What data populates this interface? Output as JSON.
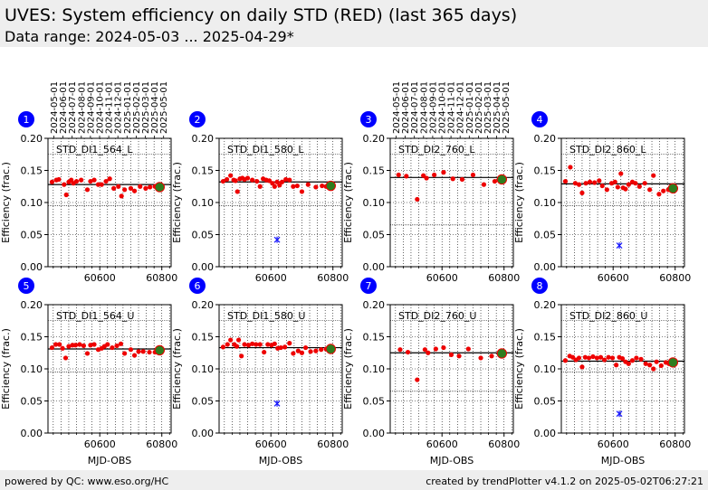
{
  "header": {
    "title": "UVES: System efficiency on daily STD (RED) (last 365 days)",
    "subtitle": "Data range: 2024-05-03 ... 2025-04-29*"
  },
  "footer": {
    "left": "powered by QC: www.eso.org/HC",
    "right": "created by trendPlotter v4.1.2 on 2025-05-02T06:27:21"
  },
  "colors": {
    "point": "#ee0000",
    "latest": "#2e7d1e",
    "outlier": "#1a1aff",
    "badge": "#0000ff",
    "grid": "#000000"
  },
  "date_ticks": [
    "2024-05-01",
    "2024-06-01",
    "2024-07-01",
    "2024-08-01",
    "2024-09-01",
    "2024-10-01",
    "2024-11-01",
    "2024-12-01",
    "2025-01-01",
    "2025-02-01",
    "2025-03-01",
    "2025-04-01",
    "2025-05-01"
  ],
  "chart_data": [
    {
      "type": "scatter",
      "badge": "1",
      "label": "STD_DI1_564_L",
      "xlabel": "",
      "ylabel": "Efficiency (frac.)",
      "xlim": [
        60433,
        60830
      ],
      "ylim": [
        0,
        0.2
      ],
      "xticks": [
        60600,
        60800
      ],
      "yticks": [
        "0.00",
        "0.05",
        "0.10",
        "0.15",
        "0.20"
      ],
      "show_dates": true,
      "ref": 0.128,
      "lower": 0.095,
      "upper": 0.175,
      "x": [
        60446,
        60460,
        60468,
        60485,
        60492,
        60500,
        60508,
        60515,
        60525,
        60540,
        60560,
        60570,
        60582,
        60595,
        60606,
        60620,
        60632,
        60645,
        60660,
        60670,
        60680,
        60700,
        60712,
        60730,
        60748,
        60762,
        60778
      ],
      "y": [
        0.132,
        0.135,
        0.136,
        0.128,
        0.112,
        0.132,
        0.135,
        0.13,
        0.133,
        0.135,
        0.12,
        0.133,
        0.135,
        0.128,
        0.128,
        0.133,
        0.137,
        0.122,
        0.125,
        0.11,
        0.12,
        0.122,
        0.118,
        0.125,
        0.122,
        0.124,
        0.125
      ],
      "latest": [
        60793,
        0.124
      ],
      "outliers": []
    },
    {
      "type": "scatter",
      "badge": "2",
      "label": "STD_DI1_580_L",
      "xlabel": "",
      "ylabel": "Efficiency (frac.)",
      "xlim": [
        60433,
        60830
      ],
      "ylim": [
        0,
        0.2
      ],
      "xticks": [
        60600,
        60800
      ],
      "yticks": [
        "0.00",
        "0.05",
        "0.10",
        "0.15",
        "0.20"
      ],
      "show_dates": false,
      "ref": 0.132,
      "lower": 0.095,
      "upper": 0.175,
      "x": [
        60446,
        60458,
        60470,
        60480,
        60486,
        60492,
        60500,
        60508,
        60515,
        60525,
        60540,
        60555,
        60565,
        60575,
        60585,
        60595,
        60605,
        60612,
        60620,
        60628,
        60636,
        60648,
        60660,
        60672,
        60685,
        60700,
        60720,
        60745,
        60765,
        60778
      ],
      "y": [
        0.133,
        0.136,
        0.142,
        0.135,
        0.134,
        0.117,
        0.137,
        0.138,
        0.136,
        0.138,
        0.135,
        0.133,
        0.125,
        0.137,
        0.135,
        0.134,
        0.13,
        0.125,
        0.132,
        0.127,
        0.132,
        0.136,
        0.135,
        0.125,
        0.126,
        0.117,
        0.128,
        0.124,
        0.126,
        0.125
      ],
      "latest": [
        60793,
        0.126
      ],
      "outliers": [
        [
          60620,
          0.042
        ]
      ]
    },
    {
      "type": "scatter",
      "badge": "3",
      "label": "STD_DI2_760_L",
      "xlabel": "",
      "ylabel": "Efficiency (frac.)",
      "xlim": [
        60433,
        60830
      ],
      "ylim": [
        0,
        0.2
      ],
      "xticks": [
        60600,
        60800
      ],
      "yticks": [
        "0.00",
        "0.05",
        "0.10",
        "0.15",
        "0.20"
      ],
      "show_dates": true,
      "ref": 0.139,
      "lower": 0.065,
      "upper": 0.175,
      "x": [
        60460,
        60485,
        60520,
        60540,
        60550,
        60575,
        60605,
        60635,
        60665,
        60700,
        60735,
        60770
      ],
      "y": [
        0.143,
        0.141,
        0.105,
        0.142,
        0.138,
        0.143,
        0.147,
        0.137,
        0.136,
        0.143,
        0.128,
        0.133
      ],
      "latest": [
        60793,
        0.136
      ],
      "outliers": []
    },
    {
      "type": "scatter",
      "badge": "4",
      "label": "STD_DI2_860_L",
      "xlabel": "",
      "ylabel": "Efficiency (frac.)",
      "xlim": [
        60433,
        60830
      ],
      "ylim": [
        0,
        0.2
      ],
      "xticks": [
        60600,
        60800
      ],
      "yticks": [
        "0.00",
        "0.05",
        "0.10",
        "0.15",
        "0.20"
      ],
      "show_dates": false,
      "ref": 0.129,
      "lower": 0.095,
      "upper": 0.175,
      "x": [
        60446,
        60462,
        60478,
        60490,
        60500,
        60512,
        60525,
        60540,
        60555,
        60565,
        60580,
        60595,
        60606,
        60615,
        60625,
        60632,
        60640,
        60650,
        60662,
        60672,
        60685,
        60702,
        60718,
        60730,
        60748,
        60762,
        60778
      ],
      "y": [
        0.133,
        0.155,
        0.13,
        0.128,
        0.115,
        0.13,
        0.132,
        0.131,
        0.134,
        0.126,
        0.12,
        0.13,
        0.132,
        0.124,
        0.145,
        0.123,
        0.121,
        0.128,
        0.132,
        0.13,
        0.125,
        0.13,
        0.12,
        0.142,
        0.113,
        0.118,
        0.12
      ],
      "latest": [
        60793,
        0.122
      ],
      "outliers": [
        [
          60620,
          0.033
        ]
      ]
    },
    {
      "type": "scatter",
      "badge": "5",
      "label": "STD_DI1_564_U",
      "xlabel": "MJD-OBS",
      "ylabel": "Efficiency (frac.)",
      "xlim": [
        60433,
        60830
      ],
      "ylim": [
        0,
        0.2
      ],
      "xticks": [
        60600,
        60800
      ],
      "yticks": [
        "0.00",
        "0.05",
        "0.10",
        "0.15",
        "0.20"
      ],
      "show_dates": false,
      "ref": 0.131,
      "lower": 0.095,
      "upper": 0.175,
      "x": [
        60446,
        60458,
        60470,
        60480,
        60490,
        60500,
        60512,
        60522,
        60535,
        60548,
        60560,
        60570,
        60582,
        60595,
        60606,
        60615,
        60625,
        60640,
        60655,
        60668,
        60680,
        60700,
        60712,
        60725,
        60740,
        60760,
        60778
      ],
      "y": [
        0.133,
        0.138,
        0.138,
        0.132,
        0.117,
        0.135,
        0.137,
        0.137,
        0.138,
        0.136,
        0.124,
        0.137,
        0.138,
        0.13,
        0.132,
        0.135,
        0.138,
        0.133,
        0.136,
        0.139,
        0.124,
        0.13,
        0.121,
        0.127,
        0.127,
        0.126,
        0.126
      ],
      "latest": [
        60793,
        0.129
      ],
      "outliers": []
    },
    {
      "type": "scatter",
      "badge": "6",
      "label": "STD_DI1_580_U",
      "xlabel": "MJD-OBS",
      "ylabel": "Efficiency (frac.)",
      "xlim": [
        60433,
        60830
      ],
      "ylim": [
        0,
        0.2
      ],
      "xticks": [
        60600,
        60800
      ],
      "yticks": [
        "0.00",
        "0.05",
        "0.10",
        "0.15",
        "0.20"
      ],
      "show_dates": false,
      "ref": 0.133,
      "lower": 0.095,
      "upper": 0.175,
      "x": [
        60446,
        60460,
        60470,
        60482,
        60490,
        60496,
        60505,
        60515,
        60528,
        60540,
        60552,
        60565,
        60578,
        60590,
        60602,
        60612,
        60622,
        60632,
        60645,
        60660,
        60672,
        60688,
        60700,
        60712,
        60728,
        60745,
        60762,
        60778
      ],
      "y": [
        0.134,
        0.138,
        0.145,
        0.138,
        0.135,
        0.145,
        0.12,
        0.138,
        0.137,
        0.139,
        0.138,
        0.138,
        0.126,
        0.138,
        0.137,
        0.139,
        0.132,
        0.133,
        0.134,
        0.14,
        0.124,
        0.128,
        0.125,
        0.133,
        0.127,
        0.128,
        0.13,
        0.131
      ],
      "latest": [
        60793,
        0.131
      ],
      "outliers": [
        [
          60620,
          0.046
        ]
      ]
    },
    {
      "type": "scatter",
      "badge": "7",
      "label": "STD_DI2_760_U",
      "xlabel": "MJD-OBS",
      "ylabel": "Efficiency (frac.)",
      "xlim": [
        60433,
        60830
      ],
      "ylim": [
        0,
        0.2
      ],
      "xticks": [
        60600,
        60800
      ],
      "yticks": [
        "0.00",
        "0.05",
        "0.10",
        "0.15",
        "0.20"
      ],
      "show_dates": false,
      "ref": 0.125,
      "lower": 0.065,
      "upper": 0.175,
      "x": [
        60465,
        60490,
        60520,
        60545,
        60555,
        60580,
        60605,
        60630,
        60655,
        60685,
        60725,
        60760
      ],
      "y": [
        0.13,
        0.126,
        0.083,
        0.13,
        0.125,
        0.131,
        0.133,
        0.122,
        0.12,
        0.131,
        0.117,
        0.12
      ],
      "latest": [
        60793,
        0.124
      ],
      "outliers": []
    },
    {
      "type": "scatter",
      "badge": "8",
      "label": "STD_DI2_860_U",
      "xlabel": "MJD-OBS",
      "ylabel": "Efficiency (frac.)",
      "xlim": [
        60433,
        60830
      ],
      "ylim": [
        0,
        0.2
      ],
      "xticks": [
        60600,
        60800
      ],
      "yticks": [
        "0.00",
        "0.05",
        "0.10",
        "0.15",
        "0.20"
      ],
      "show_dates": false,
      "ref": 0.112,
      "lower": 0.095,
      "upper": 0.175,
      "x": [
        60446,
        60460,
        60470,
        60480,
        60490,
        60500,
        60510,
        60522,
        60535,
        60548,
        60560,
        60572,
        60585,
        60598,
        60610,
        60620,
        60630,
        60640,
        60650,
        60662,
        60675,
        60690,
        60705,
        60718,
        60730,
        60740,
        60755,
        60770,
        60780
      ],
      "y": [
        0.113,
        0.12,
        0.118,
        0.114,
        0.117,
        0.103,
        0.118,
        0.117,
        0.119,
        0.117,
        0.118,
        0.114,
        0.118,
        0.117,
        0.106,
        0.118,
        0.116,
        0.111,
        0.108,
        0.113,
        0.117,
        0.115,
        0.108,
        0.106,
        0.1,
        0.111,
        0.105,
        0.11,
        0.108
      ],
      "latest": [
        60793,
        0.11
      ],
      "outliers": [
        [
          60620,
          0.03
        ]
      ]
    }
  ]
}
